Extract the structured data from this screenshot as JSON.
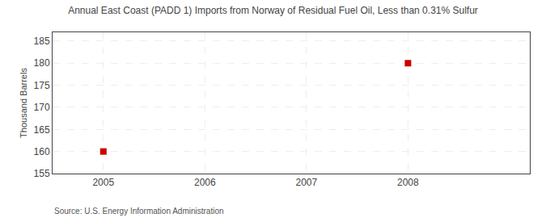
{
  "chart_data": {
    "type": "scatter",
    "title": "Annual East Coast (PADD 1) Imports from Norway of Residual Fuel Oil, Less than 0.31% Sulfur",
    "ylabel": "Thousand Barrels",
    "annotations": [
      "Source: U.S. Energy Information Administration"
    ],
    "x": [
      2005,
      2008
    ],
    "values": [
      160,
      180
    ],
    "color": "#cc0000",
    "marker": "square",
    "xlim": [
      2004.5,
      2009.2
    ],
    "xticks": [
      2005,
      2006,
      2007,
      2008
    ],
    "ylim": [
      155,
      187
    ],
    "yticks": [
      155,
      160,
      165,
      170,
      175,
      180,
      185
    ],
    "grid": true
  }
}
